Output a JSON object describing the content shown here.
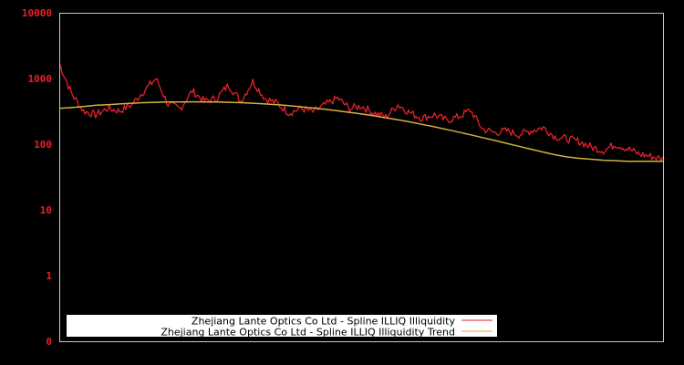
{
  "chart_data": {
    "type": "line",
    "title": "",
    "xlabel": "",
    "ylabel": "",
    "yscale": "log",
    "ylim": [
      0.1,
      10000
    ],
    "yticks": [
      {
        "label": "10000",
        "value": 10000
      },
      {
        "label": "1000",
        "value": 1000
      },
      {
        "label": "100",
        "value": 100
      },
      {
        "label": "10",
        "value": 10
      },
      {
        "label": "1",
        "value": 1
      },
      {
        "label": "0",
        "value": 0.1
      }
    ],
    "grid": false,
    "legend_position": "bottom-inside",
    "x": [
      0,
      0.02,
      0.04,
      0.06,
      0.08,
      0.1,
      0.12,
      0.14,
      0.16,
      0.18,
      0.2,
      0.22,
      0.24,
      0.26,
      0.28,
      0.3,
      0.32,
      0.34,
      0.36,
      0.38,
      0.4,
      0.42,
      0.44,
      0.46,
      0.48,
      0.5,
      0.52,
      0.54,
      0.56,
      0.58,
      0.6,
      0.62,
      0.64,
      0.66,
      0.68,
      0.7,
      0.72,
      0.74,
      0.76,
      0.78,
      0.8,
      0.82,
      0.84,
      0.86,
      0.88,
      0.9,
      0.92,
      0.94,
      0.96,
      0.98,
      1.0
    ],
    "series": [
      {
        "name": "Zhejiang Lante Optics Co Ltd - Spline ILLIQ Illiquidity",
        "color": "#e8202a",
        "values": [
          1700,
          600,
          320,
          280,
          350,
          320,
          400,
          650,
          1000,
          400,
          350,
          650,
          450,
          500,
          800,
          450,
          900,
          500,
          420,
          300,
          350,
          310,
          400,
          500,
          350,
          380,
          300,
          260,
          400,
          300,
          250,
          280,
          230,
          260,
          330,
          170,
          150,
          160,
          140,
          160,
          180,
          130,
          120,
          110,
          90,
          80,
          100,
          85,
          70,
          65,
          58
        ]
      },
      {
        "name": "Zhejiang Lante Optics Co Ltd - Spline ILLIQ Illiquidity Trend",
        "color": "#d4b040",
        "values": [
          350,
          360,
          375,
          390,
          400,
          410,
          420,
          428,
          434,
          438,
          440,
          441,
          440,
          438,
          434,
          428,
          420,
          410,
          398,
          385,
          370,
          355,
          340,
          322,
          305,
          288,
          270,
          252,
          235,
          218,
          200,
          184,
          168,
          153,
          139,
          126,
          114,
          103,
          93,
          84,
          76,
          69,
          64,
          61,
          59,
          57,
          56,
          55,
          55,
          55,
          55
        ]
      }
    ]
  },
  "legend": {
    "items": [
      {
        "label": "Zhejiang Lante Optics Co Ltd - Spline ILLIQ Illiquidity",
        "color": "#e8202a"
      },
      {
        "label": "Zhejiang Lante Optics Co Ltd - Spline ILLIQ Illiquidity Trend",
        "color": "#d4b040"
      }
    ]
  },
  "colors": {
    "background": "#000000",
    "axis_frame": "#c8c8c8",
    "tick_label": "#e8202a",
    "legend_bg": "#ffffff"
  }
}
